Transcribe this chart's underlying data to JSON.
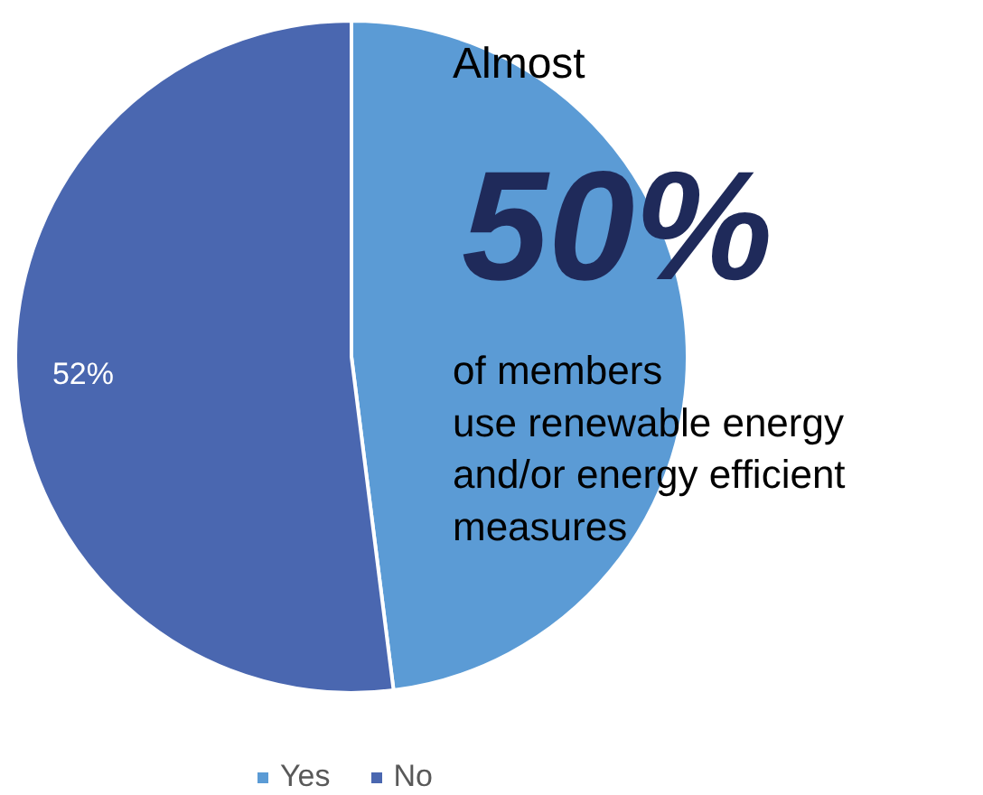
{
  "chart_data": {
    "type": "pie",
    "categories": [
      "Yes",
      "No"
    ],
    "values": [
      48,
      52
    ],
    "colors": [
      "#5b9bd5",
      "#4a67b0"
    ],
    "value_labels": [
      null,
      "52%"
    ],
    "legend": "bottom",
    "annotations": [
      "Almost",
      "50%",
      "of members\nuse renewable energy\nand/or energy efficient\nmeasures"
    ]
  }
}
